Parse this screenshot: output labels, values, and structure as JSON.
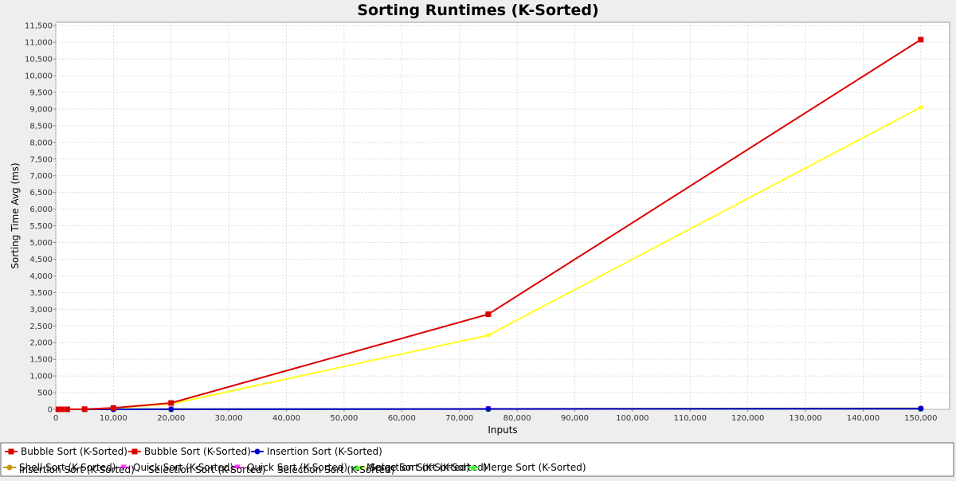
{
  "chart_data": {
    "type": "line",
    "title": "Sorting Runtimes (K-Sorted)",
    "xlabel": "Inputs",
    "ylabel": "Sorting Time Avg (ms)",
    "xlim": [
      0,
      155000
    ],
    "ylim": [
      0,
      11600
    ],
    "x_ticks": [
      0,
      10000,
      20000,
      30000,
      40000,
      50000,
      60000,
      70000,
      80000,
      90000,
      100000,
      110000,
      120000,
      130000,
      140000,
      150000
    ],
    "y_ticks": [
      0,
      500,
      1000,
      1500,
      2000,
      2500,
      3000,
      3500,
      4000,
      4500,
      5000,
      5500,
      6000,
      6500,
      7000,
      7500,
      8000,
      8500,
      9000,
      9500,
      10000,
      10500,
      11000,
      11500
    ],
    "x_tick_labels": [
      "0",
      "10,000",
      "20,000",
      "30,000",
      "40,000",
      "50,000",
      "60,000",
      "70,000",
      "80,000",
      "90,000",
      "100,000",
      "110,000",
      "120,000",
      "130,000",
      "140,000",
      "150,000"
    ],
    "y_tick_labels": [
      "0",
      "500",
      "1,000",
      "1,500",
      "2,000",
      "2,500",
      "3,000",
      "3,500",
      "4,000",
      "4,500",
      "5,000",
      "5,500",
      "6,000",
      "6,500",
      "7,000",
      "7,500",
      "8,000",
      "8,500",
      "9,000",
      "9,500",
      "10,000",
      "10,500",
      "11,000",
      "11,500"
    ],
    "grid": true,
    "legend_position": "bottom",
    "series": [
      {
        "name": "Bubble Sort (K-Sorted)",
        "color": "#dd0000",
        "marker": "square",
        "x": [
          500,
          1000,
          2000,
          5000,
          10000,
          20000,
          75000,
          150000
        ],
        "y": [
          0,
          0,
          1,
          6,
          40,
          190,
          2850,
          11080
        ]
      },
      {
        "name": "Insertion Sort (K-Sorted)",
        "color": "#0000cc",
        "marker": "circle",
        "x": [
          500,
          1000,
          2000,
          5000,
          10000,
          20000,
          75000,
          150000
        ],
        "y": [
          0,
          0,
          0,
          0,
          1,
          2,
          12,
          20
        ]
      },
      {
        "name": "Shell Sort (K-Sorted)",
        "color": "#cc9900",
        "marker": "circle",
        "x": [
          500,
          1000,
          2000,
          5000,
          10000,
          20000,
          75000,
          150000
        ],
        "y": [
          0,
          0,
          0,
          1,
          2,
          4,
          15,
          30
        ]
      },
      {
        "name": "Quick Sort (K-Sorted)",
        "color": "#ff33ff",
        "marker": "triangle-down",
        "x": [
          500,
          1000,
          2000,
          5000,
          10000,
          20000,
          75000,
          150000
        ],
        "y": [
          0,
          0,
          0,
          0,
          1,
          2,
          8,
          15
        ]
      },
      {
        "name": "Selection Sort (K-Sorted)",
        "color": "#ffff22",
        "marker": "diamond",
        "x": [
          500,
          1000,
          2000,
          5000,
          10000,
          20000,
          75000,
          150000
        ],
        "y": [
          0,
          0,
          1,
          5,
          35,
          160,
          2220,
          9050
        ]
      },
      {
        "name": "Merge Sort (K-Sorted)",
        "color": "#33ff33",
        "marker": "triangle-up",
        "x": [
          500,
          1000,
          2000,
          5000,
          10000,
          20000,
          75000,
          150000
        ],
        "y": [
          0,
          0,
          0,
          1,
          2,
          3,
          10,
          18
        ]
      }
    ]
  },
  "legend": {
    "row1": [
      {
        "label": "Bubble Sort (K-Sorted)",
        "color": "#dd0000",
        "marker": "square"
      },
      {
        "label": "Bubble Sort (K-Sorted)",
        "color": "#dd0000",
        "marker": "square"
      },
      {
        "label": "Insertion Sort (K-Sorted)",
        "color": "#0000cc",
        "marker": "circle"
      }
    ],
    "row2": [
      {
        "label": "Shell Sort (K-Sorted)",
        "color": "#cc9900",
        "marker": "circle"
      },
      {
        "label": "Quick Sort (K-Sorted)",
        "color": "#ff33ff",
        "marker": "triangle-down"
      },
      {
        "label": "Quick Sort (K-Sorted)",
        "color": "#ff33ff",
        "marker": "triangle-down"
      },
      {
        "label": "Selection Sort (K-Sorted)",
        "color": "#ffff22",
        "marker": "diamond"
      },
      {
        "label": "Merge Sort (K-Sorted)",
        "color": "#33ff33",
        "marker": "triangle-up"
      },
      {
        "label": "Merge Sort (K-Sorted)",
        "color": "#33ff33",
        "marker": "triangle-up"
      }
    ],
    "overlap": [
      {
        "label": "Insertion Sort (K-Sorted)"
      },
      {
        "label": "Selection Sort (K-Sorted)"
      },
      {
        "label": "Selection Sort (K-Sorted)"
      }
    ]
  }
}
